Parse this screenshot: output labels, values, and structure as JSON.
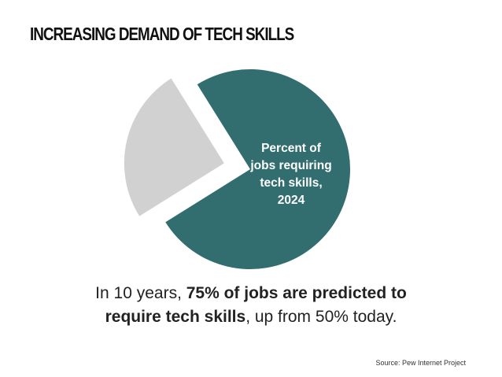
{
  "chart_data": {
    "type": "pie",
    "title": "INCREASING DEMAND OF TECH SKILLS",
    "categories": [
      "Percent of jobs requiring tech skills, 2024",
      null
    ],
    "values": [
      75,
      25
    ],
    "colors": [
      "#326e70",
      "#d1d1d1"
    ],
    "caption": [
      "In 10 years, ",
      "75% of jobs are predicted to require tech skills",
      ", up from 50% today."
    ],
    "source": "Source: Pew Internet Project"
  }
}
